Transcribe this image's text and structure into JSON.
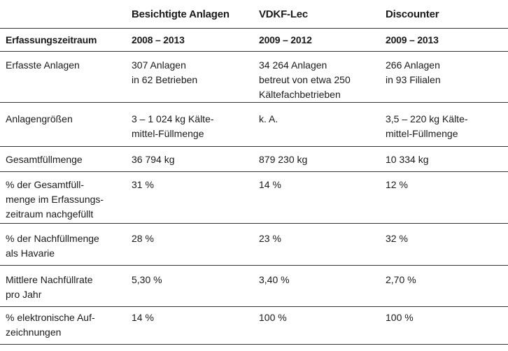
{
  "table": {
    "header": [
      "Besichtigte Anlagen",
      "VDKF-Lec",
      "Discounter"
    ],
    "rows": [
      [
        [
          "Erfassungszeitraum"
        ],
        [
          "2008 – 2013"
        ],
        [
          "2009 – 2012"
        ],
        [
          "2009 – 2013"
        ]
      ],
      [
        [
          "Erfasste Anlagen"
        ],
        [
          "307 Anlagen",
          "in 62 Betrieben"
        ],
        [
          "34 264 Anlagen",
          "betreut von etwa 250",
          "Kältefachbetrieben"
        ],
        [
          "266 Anlagen",
          "in 93 Filialen"
        ]
      ],
      [
        [
          "Anlagengrößen"
        ],
        [
          "3 – 1 024 kg Kälte-",
          "mittel-Füllmenge"
        ],
        [
          "k. A."
        ],
        [
          "3,5 – 220 kg Kälte-",
          "mittel-Füllmenge"
        ]
      ],
      [
        [
          "Gesamtfüllmenge"
        ],
        [
          "36 794 kg"
        ],
        [
          "879 230 kg"
        ],
        [
          "10 334 kg"
        ]
      ],
      [
        [
          "% der Gesamtfüll-",
          "menge im Erfassungs-",
          "zeitraum nachgefüllt"
        ],
        [
          "31 %"
        ],
        [
          "14 %"
        ],
        [
          "12 %"
        ]
      ],
      [
        [
          "% der Nachfüllmenge",
          "als Havarie"
        ],
        [
          "28 %"
        ],
        [
          "23 %"
        ],
        [
          "32 %"
        ]
      ],
      [
        [
          "Mittlere Nachfüllrate",
          "pro Jahr"
        ],
        [
          "5,30 %"
        ],
        [
          "3,40 %"
        ],
        [
          "2,70 %"
        ]
      ],
      [
        [
          "% elektronische Auf-",
          "zeichnungen"
        ],
        [
          "14 %"
        ],
        [
          "100 %"
        ],
        [
          "100 %"
        ]
      ]
    ]
  }
}
